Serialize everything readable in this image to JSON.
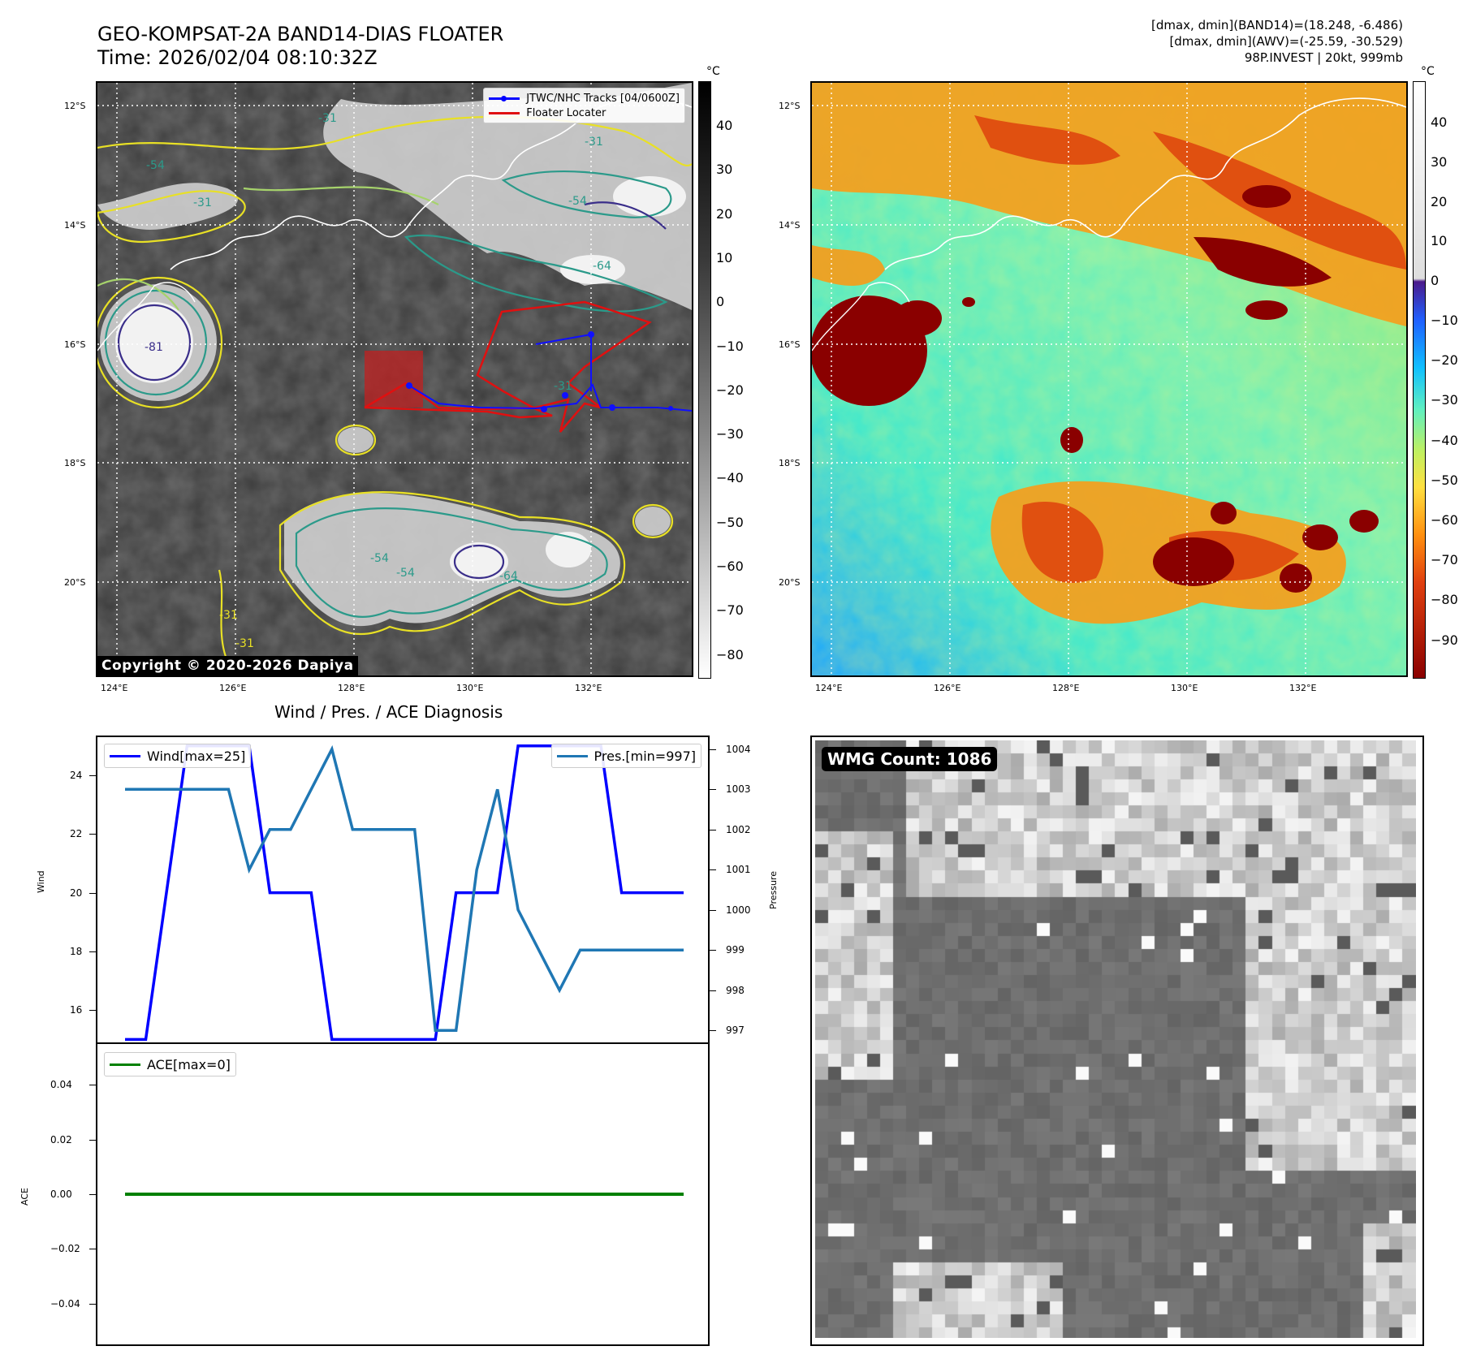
{
  "header": {
    "title_line1": "GEO-KOMPSAT-2A BAND14-DIAS FLOATER",
    "title_line2": "Time: 2026/02/04 08:10:32Z",
    "info_line1": "[dmax, dmin](BAND14)=(18.248, -6.486)",
    "info_line2": "[dmax, dmin](AWV)=(-25.59, -30.529)",
    "info_line3": "98P.INVEST | 20kt, 999mb"
  },
  "map": {
    "lon_ticks": [
      "124°E",
      "126°E",
      "128°E",
      "130°E",
      "132°E"
    ],
    "lat_ticks": [
      "12°S",
      "14°S",
      "16°S",
      "18°S",
      "20°S"
    ],
    "legend": {
      "track_label": "JTWC/NHC Tracks [04/0600Z]",
      "floater_label": "Floater Locater"
    },
    "copyright": "Copyright © 2020-2026 Dapiya",
    "contour_labels": [
      "-31",
      "-54",
      "-31",
      "-31",
      "-54",
      "-31",
      "-64",
      "-81",
      "-54",
      "-31",
      "-54",
      "-64",
      "-31"
    ]
  },
  "colorbar_left": {
    "unit": "°C",
    "ticks": [
      "40",
      "30",
      "20",
      "10",
      "0",
      "−10",
      "−20",
      "−30",
      "−40",
      "−50",
      "−60",
      "−70",
      "−80"
    ]
  },
  "colorbar_right": {
    "unit": "°C",
    "ticks": [
      "40",
      "30",
      "20",
      "10",
      "0",
      "−10",
      "−20",
      "−30",
      "−40",
      "−50",
      "−60",
      "−70",
      "−80",
      "−90"
    ]
  },
  "wind_panel": {
    "title": "Wind / Pres. / ACE Diagnosis",
    "ylabel_left": "Wind",
    "ylabel_right": "Pressure",
    "wind_legend": "Wind[max=25]",
    "pres_legend": "Pres.[min=997]",
    "wind_ticks": [
      "24",
      "22",
      "20",
      "18",
      "16"
    ],
    "pres_ticks": [
      "1004",
      "1003",
      "1002",
      "1001",
      "1000",
      "999",
      "998",
      "997"
    ]
  },
  "ace_panel": {
    "ylabel": "ACE",
    "legend": "ACE[max=0]",
    "ticks": [
      "0.04",
      "0.02",
      "0.00",
      "−0.02",
      "−0.04"
    ]
  },
  "wmg_panel": {
    "badge": "WMG Count: 1086"
  },
  "chart_data": [
    {
      "type": "line",
      "title": "Wind / Pres. / ACE Diagnosis",
      "xlabel": "",
      "ylabel": "Wind",
      "ylim": [
        14.9,
        25.3
      ],
      "x": [
        0,
        1,
        2,
        3,
        4,
        5,
        6,
        7,
        8,
        9,
        10,
        11,
        12,
        13,
        14,
        15,
        16,
        17,
        18,
        19,
        20,
        21,
        22,
        23,
        24,
        25,
        26,
        27
      ],
      "series": [
        {
          "name": "Wind[max=25]",
          "axis": "left",
          "color": "#0000ff",
          "values": [
            15,
            15,
            20,
            25,
            25,
            25,
            25,
            20,
            20,
            20,
            15,
            15,
            15,
            15,
            15,
            15,
            20,
            20,
            20,
            25,
            25,
            25,
            25,
            25,
            20,
            20,
            20,
            20
          ]
        },
        {
          "name": "Pres.[min=997]",
          "axis": "right",
          "color": "#1f77b4",
          "values": [
            1003,
            1003,
            1003,
            1003,
            1003,
            1003,
            1001,
            1002,
            1002,
            1003,
            1004,
            1002,
            1002,
            1002,
            1002,
            997,
            997,
            1001,
            1003,
            1000,
            999,
            998,
            999,
            999,
            999,
            999,
            999,
            999
          ]
        }
      ],
      "y2label": "Pressure",
      "y2lim": [
        996.7,
        1004.3
      ]
    },
    {
      "type": "line",
      "title": "",
      "xlabel": "",
      "ylabel": "ACE",
      "ylim": [
        -0.055,
        0.055
      ],
      "x": [
        0,
        27
      ],
      "series": [
        {
          "name": "ACE[max=0]",
          "color": "#008000",
          "values": [
            0,
            0
          ]
        }
      ]
    }
  ]
}
